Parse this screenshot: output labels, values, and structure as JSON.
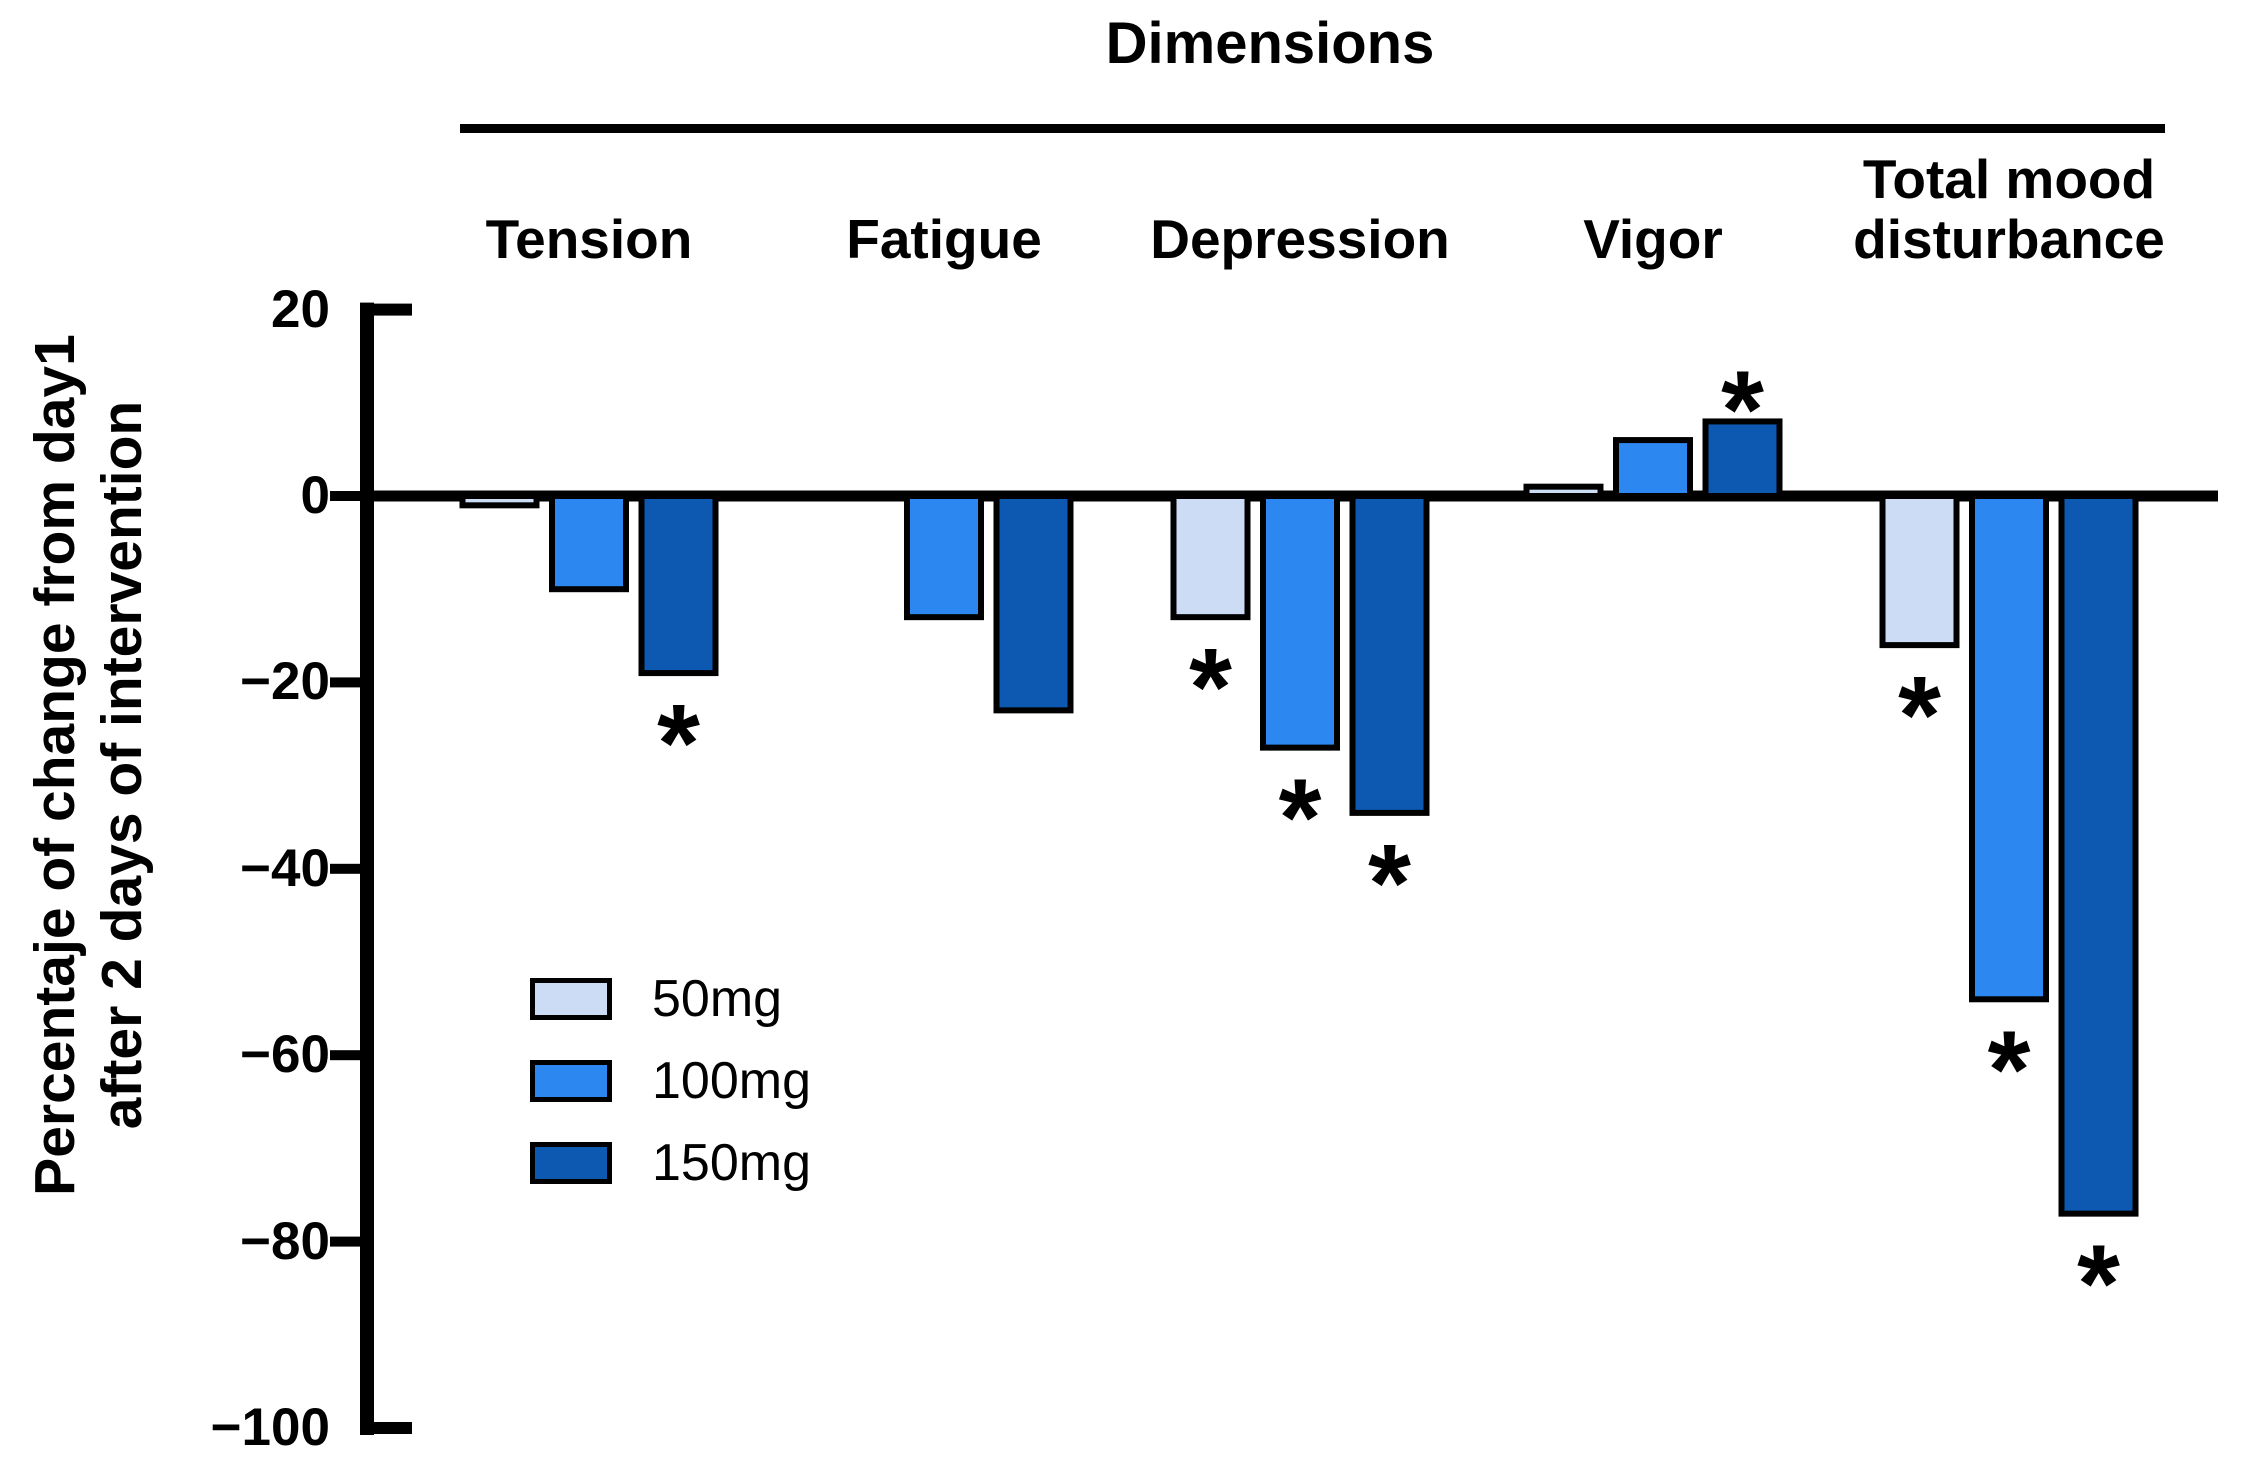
{
  "title": "Dimensions",
  "y_axis": {
    "label_line1": "Percentaje of change from day1",
    "label_line2": "after 2 days of intervention",
    "tick_labels": [
      "20",
      "0",
      "−20",
      "−40",
      "−60",
      "−80",
      "−100"
    ],
    "tick_values": [
      20,
      0,
      -20,
      -40,
      -60,
      -80,
      -100
    ]
  },
  "legend": [
    {
      "label": "50mg",
      "color": "#CBDCF4"
    },
    {
      "label": "100mg",
      "color": "#2D87F0"
    },
    {
      "label": "150mg",
      "color": "#0D59B2"
    }
  ],
  "chart_data": {
    "type": "bar",
    "title": "Dimensions",
    "ylabel": "Percentaje of change from day1 after 2 days of intervention",
    "ylim": [
      -100,
      20
    ],
    "gridlines": false,
    "legend_position": "inside-left-bottom",
    "significance_marker": "*",
    "categories": [
      "Tension",
      "Fatigue",
      "Depression",
      "Vigor",
      "Total mood disturbance"
    ],
    "series": [
      {
        "name": "50mg",
        "color": "#CBDCF4",
        "values": [
          -1,
          0,
          -13,
          1,
          -16
        ],
        "significant": [
          false,
          false,
          true,
          false,
          true
        ]
      },
      {
        "name": "100mg",
        "color": "#2D87F0",
        "values": [
          -10,
          -13,
          -27,
          6,
          -54
        ],
        "significant": [
          false,
          false,
          true,
          false,
          true
        ]
      },
      {
        "name": "150mg",
        "color": "#0D59B2",
        "values": [
          -19,
          -23,
          -34,
          8,
          -77
        ],
        "significant": [
          true,
          false,
          true,
          true,
          true
        ]
      }
    ]
  }
}
